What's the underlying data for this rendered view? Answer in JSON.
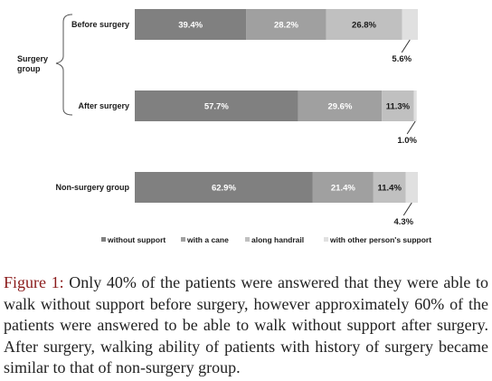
{
  "chart_data": {
    "type": "bar",
    "orientation": "horizontal",
    "stacked": true,
    "group_label": "Surgery group",
    "categories": [
      "Before surgery",
      "After surgery",
      "Non-surgery group"
    ],
    "series": [
      {
        "name": "without support",
        "values": [
          39.4,
          57.7,
          62.9
        ],
        "color": "#808080",
        "text_color": "#ffffff"
      },
      {
        "name": "with a cane",
        "values": [
          28.2,
          29.6,
          21.4
        ],
        "color": "#a0a0a0",
        "text_color": "#ffffff"
      },
      {
        "name": "along handrail",
        "values": [
          26.8,
          11.3,
          11.4
        ],
        "color": "#c0c0c0",
        "text_color": "#1a1a1a"
      },
      {
        "name": "with other person's support",
        "values": [
          5.6,
          1.0,
          4.3
        ],
        "color": "#e0e0e0",
        "text_color": "#1a1a1a"
      }
    ],
    "value_labels": [
      [
        "39.4%",
        "28.2%",
        "26.8%",
        "5.6%"
      ],
      [
        "57.7%",
        "29.6%",
        "11.3%",
        "1.0%"
      ],
      [
        "62.9%",
        "21.4%",
        "11.4%",
        "4.3%"
      ]
    ],
    "xlim": [
      0,
      100
    ],
    "grid": false,
    "legend_position": "bottom"
  },
  "caption": {
    "label": "Figure 1:",
    "text": " Only 40% of the patients were answered that they were able to walk without support before surgery, however approximately 60% of the patients were answered to be able to walk without support after surgery. After surgery, walking ability of patients with history of surgery became similar to that of non-surgery group."
  }
}
